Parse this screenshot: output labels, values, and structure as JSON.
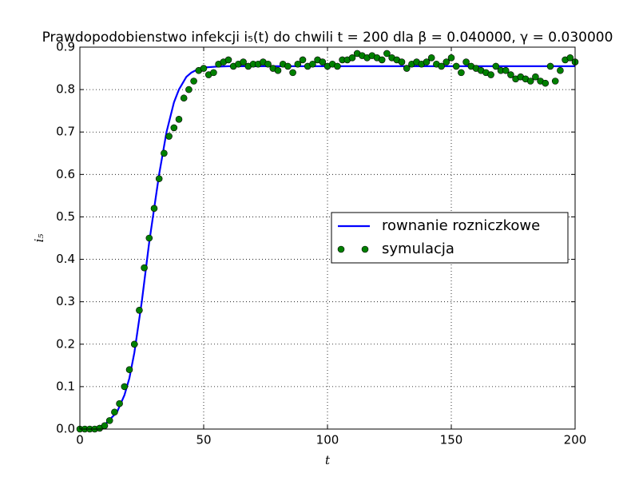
{
  "chart_data": {
    "type": "line-scatter",
    "title": "Prawdopodobienstwo infekcji i₅(t) do chwili t = 200 dla β = 0.040000, γ = 0.030000",
    "xlabel": "t",
    "ylabel": "i₅",
    "xlim": [
      0,
      200
    ],
    "ylim": [
      0,
      0.9
    ],
    "xticks": [
      0,
      50,
      100,
      150,
      200
    ],
    "yticks": [
      {
        "value": 0,
        "label": "0.0"
      },
      0.1,
      0.2,
      0.3,
      0.4,
      0.5,
      0.6,
      0.7,
      0.8,
      0.9
    ],
    "grid": true,
    "legend": "center right",
    "series": [
      {
        "name": "rownanie rozniczkowe",
        "color": "#0000ff",
        "marker": "line",
        "x": [
          0,
          5,
          10,
          15,
          18,
          20,
          22,
          25,
          28,
          30,
          32,
          35,
          38,
          40,
          43,
          45,
          48,
          50,
          55,
          60,
          200
        ],
        "values": [
          0,
          0.001,
          0.01,
          0.04,
          0.08,
          0.12,
          0.18,
          0.3,
          0.44,
          0.52,
          0.6,
          0.7,
          0.77,
          0.8,
          0.83,
          0.84,
          0.849,
          0.852,
          0.854,
          0.855,
          0.855
        ]
      },
      {
        "name": "symulacja",
        "color": "#008000",
        "marker": "circle",
        "x": [
          0,
          2,
          4,
          6,
          8,
          10,
          12,
          14,
          16,
          18,
          20,
          22,
          24,
          26,
          28,
          30,
          32,
          34,
          36,
          38,
          40,
          42,
          44,
          46,
          48,
          50,
          52,
          54,
          56,
          58,
          60,
          62,
          64,
          66,
          68,
          70,
          72,
          74,
          76,
          78,
          80,
          82,
          84,
          86,
          88,
          90,
          92,
          94,
          96,
          98,
          100,
          102,
          104,
          106,
          108,
          110,
          112,
          114,
          116,
          118,
          120,
          122,
          124,
          126,
          128,
          130,
          132,
          134,
          136,
          138,
          140,
          142,
          144,
          146,
          148,
          150,
          152,
          154,
          156,
          158,
          160,
          162,
          164,
          166,
          168,
          170,
          172,
          174,
          176,
          178,
          180,
          182,
          184,
          186,
          188,
          190,
          192,
          194,
          196,
          198,
          200
        ],
        "values": [
          0,
          0,
          0,
          0,
          0.002,
          0.008,
          0.02,
          0.04,
          0.06,
          0.1,
          0.14,
          0.2,
          0.28,
          0.38,
          0.45,
          0.52,
          0.59,
          0.65,
          0.69,
          0.71,
          0.73,
          0.78,
          0.8,
          0.82,
          0.845,
          0.85,
          0.835,
          0.84,
          0.86,
          0.865,
          0.87,
          0.855,
          0.86,
          0.865,
          0.855,
          0.86,
          0.86,
          0.865,
          0.86,
          0.85,
          0.845,
          0.86,
          0.855,
          0.84,
          0.86,
          0.87,
          0.855,
          0.86,
          0.87,
          0.865,
          0.855,
          0.86,
          0.855,
          0.87,
          0.87,
          0.875,
          0.885,
          0.88,
          0.875,
          0.88,
          0.875,
          0.87,
          0.885,
          0.875,
          0.87,
          0.865,
          0.85,
          0.86,
          0.865,
          0.86,
          0.865,
          0.875,
          0.86,
          0.855,
          0.865,
          0.875,
          0.855,
          0.84,
          0.865,
          0.855,
          0.85,
          0.845,
          0.84,
          0.835,
          0.855,
          0.845,
          0.845,
          0.835,
          0.825,
          0.83,
          0.825,
          0.82,
          0.83,
          0.82,
          0.815,
          0.855,
          0.82,
          0.845,
          0.87,
          0.875,
          0.865
        ]
      }
    ]
  }
}
